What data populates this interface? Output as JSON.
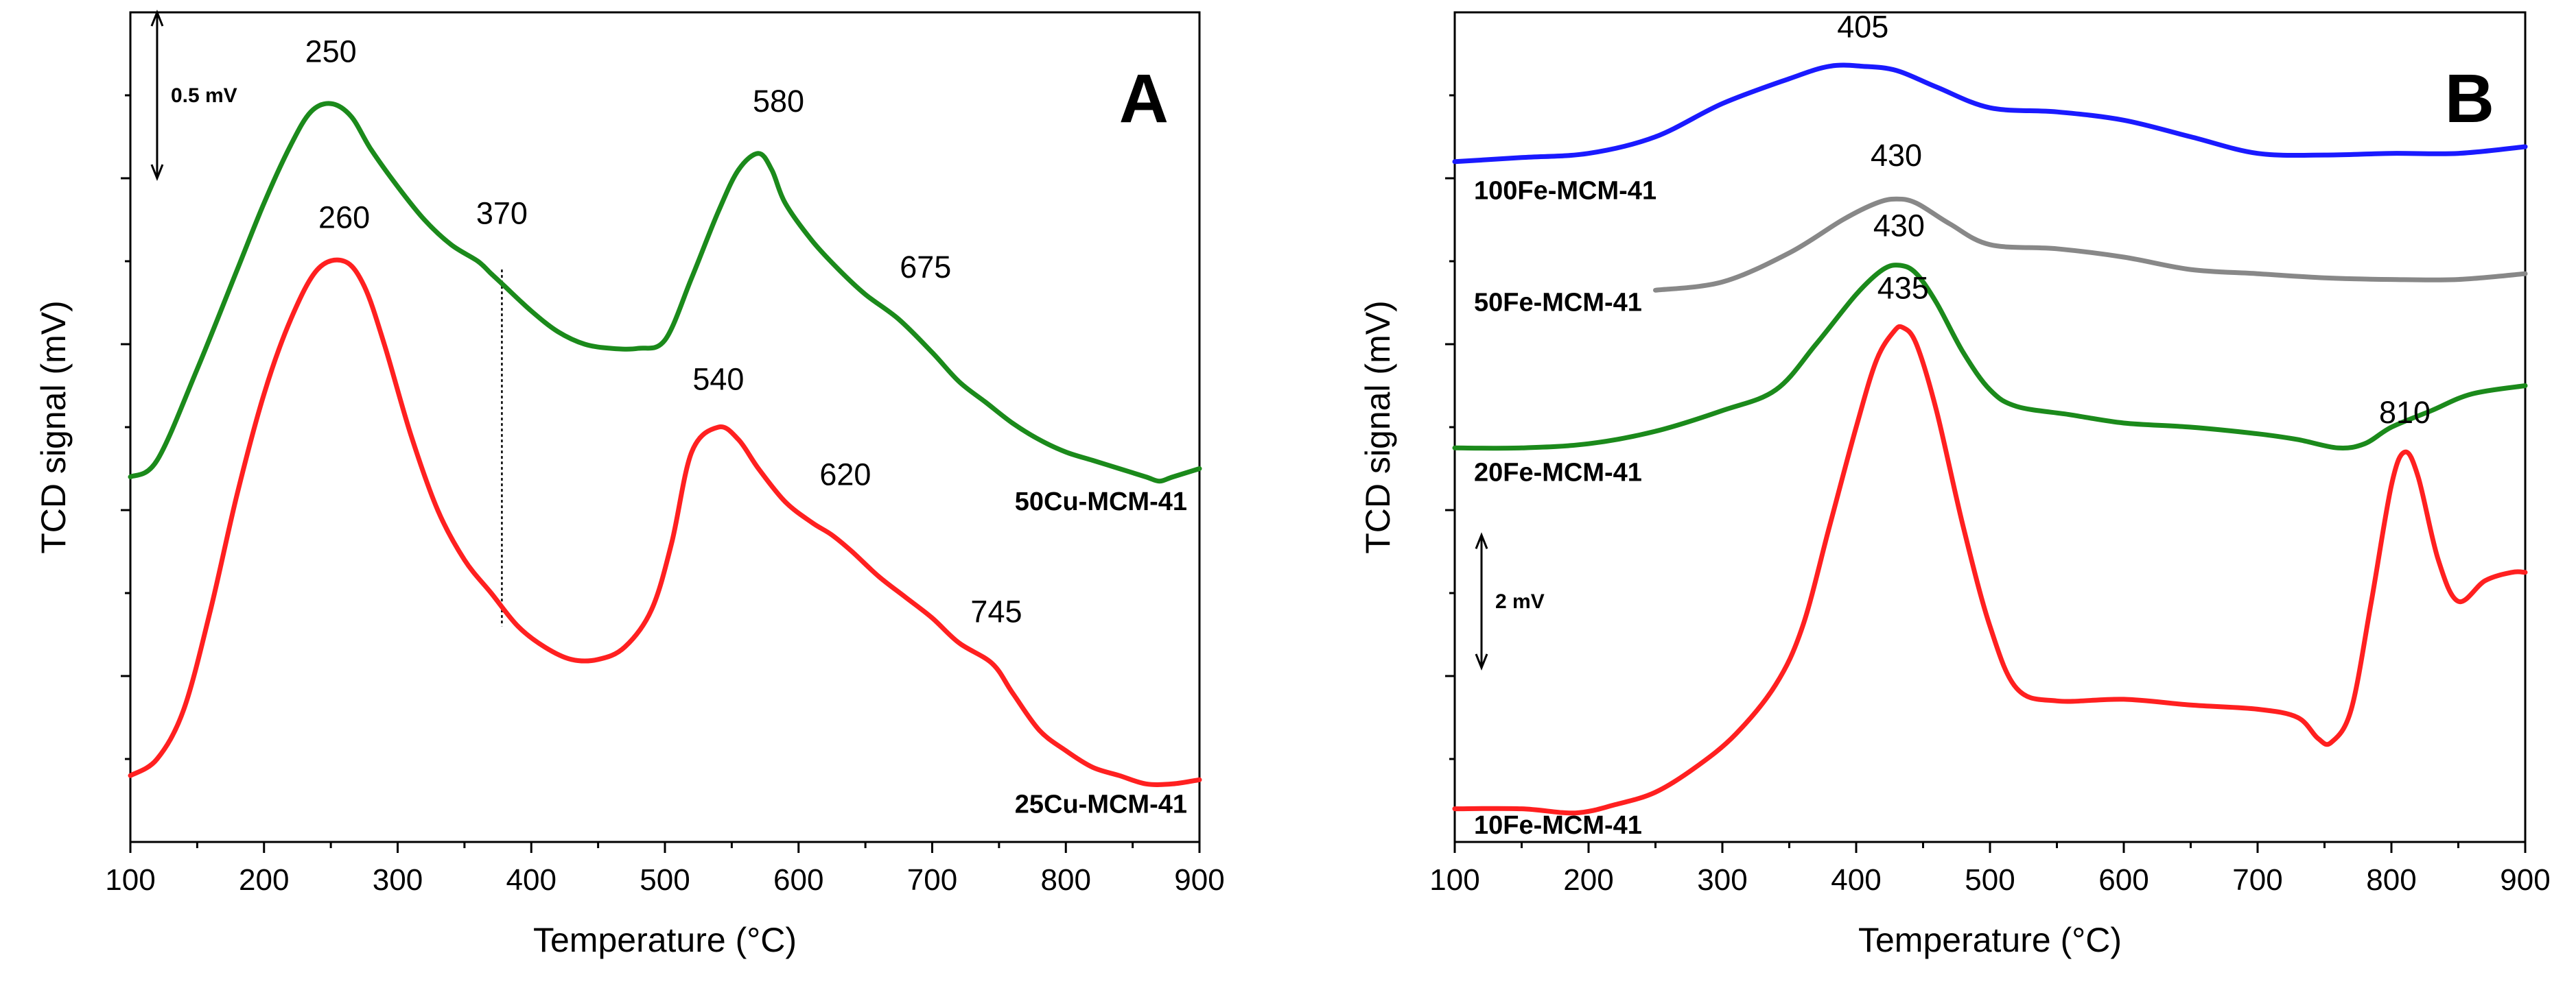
{
  "chart_data": [
    {
      "type": "line",
      "panel": "A",
      "xlabel": "Temperature (°C)",
      "ylabel": "TCD signal (mV)",
      "xlim": [
        100,
        900
      ],
      "ylim": [
        0,
        10
      ],
      "xticks": [
        100,
        200,
        300,
        400,
        500,
        600,
        700,
        800,
        900
      ],
      "scale_bar": {
        "label": "0.5 mV",
        "x": 120,
        "y_low": 8.0,
        "y_high": 10.0
      },
      "guide_line": {
        "x": 378,
        "y_low": 2.6,
        "y_high": 6.9
      },
      "series": [
        {
          "name": "50Cu-MCM-41",
          "color": "#1b8a1b",
          "label_at": [
            900,
            4.0
          ],
          "x": [
            100,
            120,
            150,
            180,
            200,
            220,
            235,
            250,
            265,
            280,
            300,
            320,
            340,
            360,
            370,
            380,
            400,
            420,
            440,
            460,
            480,
            500,
            520,
            540,
            555,
            570,
            580,
            590,
            610,
            630,
            650,
            675,
            700,
            720,
            740,
            760,
            780,
            800,
            820,
            840,
            860,
            870,
            880,
            900
          ],
          "y": [
            4.4,
            4.6,
            5.7,
            6.9,
            7.7,
            8.4,
            8.8,
            8.9,
            8.75,
            8.35,
            7.9,
            7.5,
            7.2,
            7.0,
            6.85,
            6.7,
            6.4,
            6.15,
            6.0,
            5.95,
            5.95,
            6.05,
            6.8,
            7.6,
            8.1,
            8.3,
            8.1,
            7.7,
            7.25,
            6.9,
            6.6,
            6.3,
            5.9,
            5.55,
            5.3,
            5.05,
            4.85,
            4.7,
            4.6,
            4.5,
            4.4,
            4.35,
            4.4,
            4.5
          ],
          "peaks": [
            {
              "label": "250",
              "x": 250,
              "y": 9.4
            },
            {
              "label": "370",
              "x": 378,
              "y": 7.45
            },
            {
              "label": "580",
              "x": 585,
              "y": 8.8
            },
            {
              "label": "675",
              "x": 695,
              "y": 6.8
            }
          ]
        },
        {
          "name": "25Cu-MCM-41",
          "color": "#ff2020",
          "label_at": [
            900,
            0.35
          ],
          "x": [
            100,
            120,
            140,
            160,
            180,
            200,
            220,
            240,
            260,
            275,
            290,
            310,
            330,
            350,
            370,
            390,
            410,
            430,
            450,
            470,
            490,
            505,
            520,
            540,
            555,
            570,
            590,
            610,
            625,
            640,
            660,
            680,
            700,
            720,
            745,
            760,
            780,
            800,
            820,
            840,
            860,
            880,
            900
          ],
          "y": [
            0.8,
            1.0,
            1.6,
            2.8,
            4.2,
            5.4,
            6.3,
            6.9,
            7.0,
            6.7,
            6.0,
            4.9,
            4.0,
            3.4,
            3.0,
            2.6,
            2.35,
            2.2,
            2.2,
            2.35,
            2.8,
            3.6,
            4.7,
            5.0,
            4.85,
            4.5,
            4.1,
            3.85,
            3.7,
            3.5,
            3.2,
            2.95,
            2.7,
            2.4,
            2.15,
            1.8,
            1.35,
            1.1,
            0.9,
            0.8,
            0.7,
            0.7,
            0.75
          ],
          "peaks": [
            {
              "label": "260",
              "x": 260,
              "y": 7.4
            },
            {
              "label": "540",
              "x": 540,
              "y": 5.45
            },
            {
              "label": "620",
              "x": 635,
              "y": 4.3
            },
            {
              "label": "745",
              "x": 748,
              "y": 2.65
            }
          ]
        }
      ]
    },
    {
      "type": "line",
      "panel": "B",
      "xlabel": "Temperature (°C)",
      "ylabel": "TCD signal (mV)",
      "xlim": [
        100,
        900
      ],
      "ylim": [
        0,
        10
      ],
      "xticks": [
        100,
        200,
        300,
        400,
        500,
        600,
        700,
        800,
        900
      ],
      "scale_bar": {
        "label": "2 mV",
        "x": 120,
        "y_low": 2.1,
        "y_high": 3.7
      },
      "series": [
        {
          "name": "100Fe-MCM-41",
          "color": "#1a1aff",
          "label_at": [
            100,
            7.75
          ],
          "x": [
            100,
            150,
            200,
            250,
            300,
            350,
            380,
            405,
            430,
            460,
            500,
            550,
            600,
            650,
            700,
            750,
            800,
            850,
            900
          ],
          "y": [
            8.2,
            8.25,
            8.3,
            8.5,
            8.9,
            9.2,
            9.35,
            9.35,
            9.3,
            9.1,
            8.85,
            8.8,
            8.7,
            8.5,
            8.3,
            8.28,
            8.3,
            8.3,
            8.38
          ],
          "peaks": [
            {
              "label": "405",
              "x": 405,
              "y": 9.7
            }
          ]
        },
        {
          "name": "50Fe-MCM-41",
          "color": "#888888",
          "label_at": [
            100,
            6.4
          ],
          "x": [
            250,
            300,
            350,
            390,
            415,
            430,
            445,
            470,
            500,
            550,
            600,
            650,
            700,
            750,
            800,
            850,
            900
          ],
          "y": [
            6.65,
            6.75,
            7.1,
            7.5,
            7.7,
            7.75,
            7.7,
            7.45,
            7.2,
            7.15,
            7.05,
            6.9,
            6.85,
            6.8,
            6.78,
            6.78,
            6.85
          ],
          "peaks": [
            {
              "label": "430",
              "x": 430,
              "y": 8.15
            }
          ]
        },
        {
          "name": "20Fe-MCM-41",
          "color": "#1b8a1b",
          "label_at": [
            100,
            4.35
          ],
          "x": [
            100,
            150,
            200,
            250,
            300,
            340,
            370,
            400,
            420,
            433,
            445,
            460,
            480,
            500,
            520,
            560,
            600,
            650,
            700,
            730,
            760,
            780,
            800,
            830,
            860,
            900
          ],
          "y": [
            4.75,
            4.75,
            4.8,
            4.95,
            5.2,
            5.45,
            6.0,
            6.6,
            6.9,
            6.95,
            6.85,
            6.5,
            5.9,
            5.45,
            5.25,
            5.15,
            5.05,
            5.0,
            4.92,
            4.85,
            4.75,
            4.8,
            5.0,
            5.2,
            5.4,
            5.5
          ],
          "peaks": [
            {
              "label": "430",
              "x": 432,
              "y": 7.3
            }
          ]
        },
        {
          "name": "10Fe-MCM-41",
          "color": "#ff2020",
          "label_at": [
            100,
            0.1
          ],
          "x": [
            100,
            150,
            190,
            220,
            250,
            280,
            310,
            340,
            360,
            380,
            400,
            415,
            428,
            435,
            445,
            460,
            480,
            500,
            520,
            550,
            600,
            650,
            700,
            730,
            745,
            755,
            770,
            785,
            800,
            810,
            820,
            835,
            850,
            870,
            890,
            900
          ],
          "y": [
            0.4,
            0.4,
            0.35,
            0.45,
            0.6,
            0.9,
            1.3,
            1.9,
            2.6,
            3.8,
            5.0,
            5.8,
            6.15,
            6.2,
            6.0,
            5.2,
            3.8,
            2.6,
            1.85,
            1.7,
            1.72,
            1.65,
            1.6,
            1.5,
            1.25,
            1.2,
            1.6,
            2.9,
            4.3,
            4.7,
            4.4,
            3.4,
            2.9,
            3.15,
            3.25,
            3.25
          ],
          "peaks": [
            {
              "label": "435",
              "x": 435,
              "y": 6.55
            },
            {
              "label": "810",
              "x": 810,
              "y": 5.05
            }
          ]
        }
      ]
    }
  ]
}
